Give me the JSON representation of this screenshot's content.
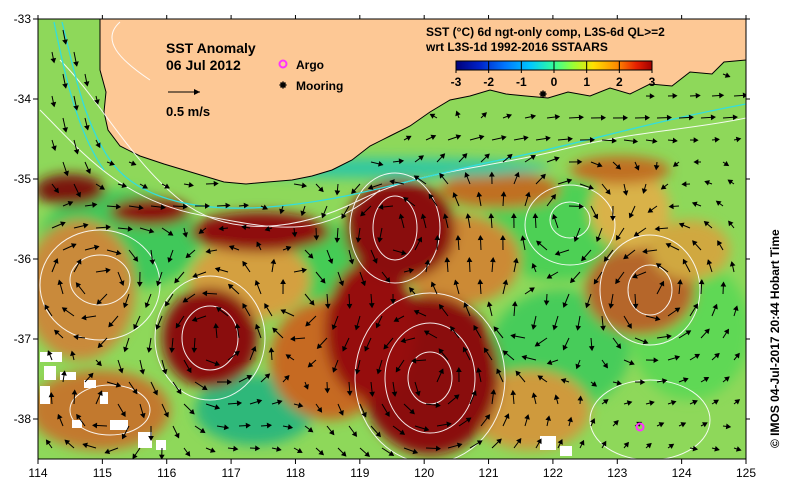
{
  "title": "SST Anomaly",
  "date": "06 Jul 2012",
  "scale_label": "0.5 m/s",
  "legend": {
    "argo_label": "Argo",
    "mooring_label": "Mooring",
    "argo_color": "#ff33ff",
    "mooring_color": "#000000"
  },
  "colorbar": {
    "line1": "SST (°C) 6d ngt-only comp, L3S-6d QL>=2",
    "line2": "wrt L3S-1d 1992-2016 SSTAARS",
    "ticks": [
      "-3",
      "-2",
      "-1",
      "0",
      "1",
      "2",
      "3"
    ],
    "colors": [
      "#00007a",
      "#0022c8",
      "#0077ff",
      "#00c8ff",
      "#33ff99",
      "#9cff33",
      "#ffe000",
      "#ff8c00",
      "#e82000",
      "#a00000"
    ]
  },
  "axes": {
    "x_ticks": [
      "114",
      "115",
      "116",
      "117",
      "118",
      "119",
      "120",
      "121",
      "122",
      "123",
      "124",
      "125"
    ],
    "y_ticks": [
      "-33",
      "-34",
      "-35",
      "-36",
      "-37",
      "-38"
    ]
  },
  "credit": "© IMOS 04-Jul-2017 20:44 Hobart Time",
  "colors": {
    "land": "#fdc895",
    "ocean_base": "#8ed85a",
    "warm_strong": "#8a0a0a",
    "warm_mid": "#c0540c",
    "warm_light": "#d8a43c",
    "cool": "#33c45a",
    "contour": "#ffffff",
    "coast_current": "#33dddd"
  }
}
